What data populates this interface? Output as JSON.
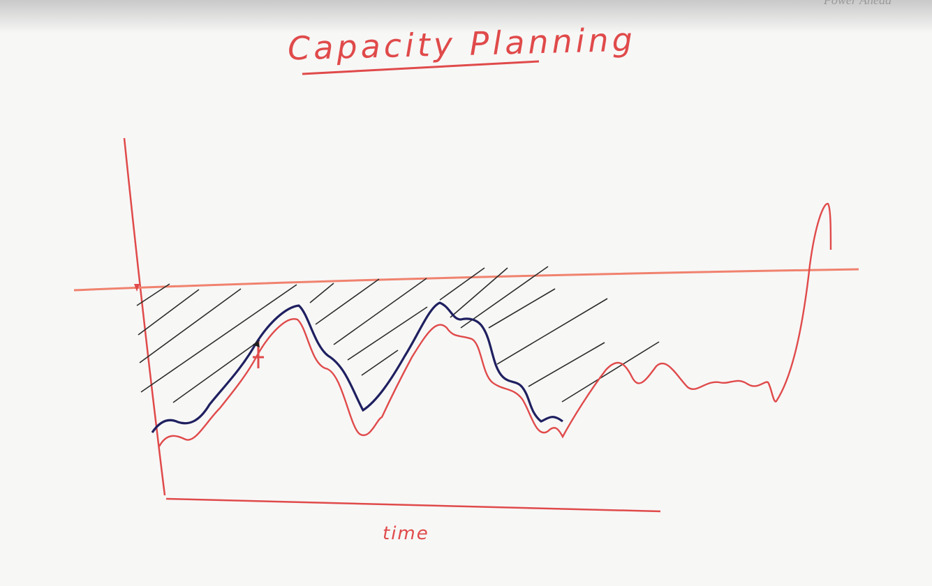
{
  "title": "Capacity Planning",
  "watermark": "Power Ahead",
  "axis": {
    "xlabel": "time"
  },
  "colors": {
    "marker_red": "#e04a4a",
    "capacity_line": "#f0826e",
    "usage_line": "#1f2060",
    "hatch": "#2b2b2b"
  }
}
